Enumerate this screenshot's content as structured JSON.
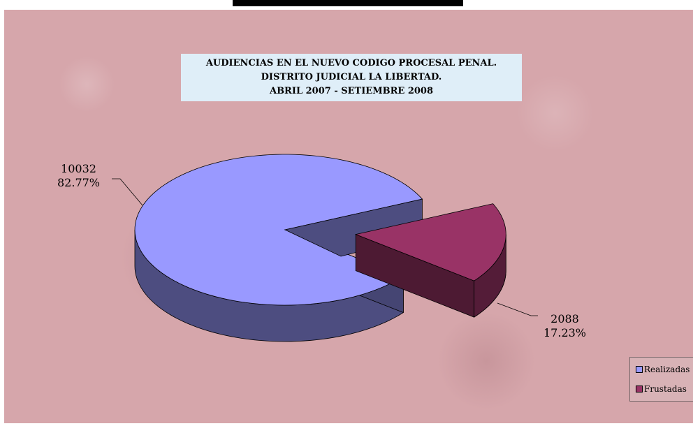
{
  "chart_data": {
    "type": "pie",
    "title_lines": [
      "AUDIENCIAS EN EL NUEVO CODIGO PROCESAL PENAL.",
      "DISTRITO JUDICIAL LA LIBERTAD.",
      "ABRIL 2007 - SETIEMBRE 2008"
    ],
    "slices": [
      {
        "label": "Realizadas",
        "value": 10032,
        "percent_label": "82.77%",
        "color": "#9999ff"
      },
      {
        "label": "Frustadas",
        "value": 2088,
        "percent_label": "17.23%",
        "color": "#993366"
      }
    ],
    "three_d": true,
    "exploded_slice": "Frustadas",
    "legend_position": "right"
  },
  "colors": {
    "background": "#d6a6ab",
    "title_box": "#dfeef8"
  }
}
